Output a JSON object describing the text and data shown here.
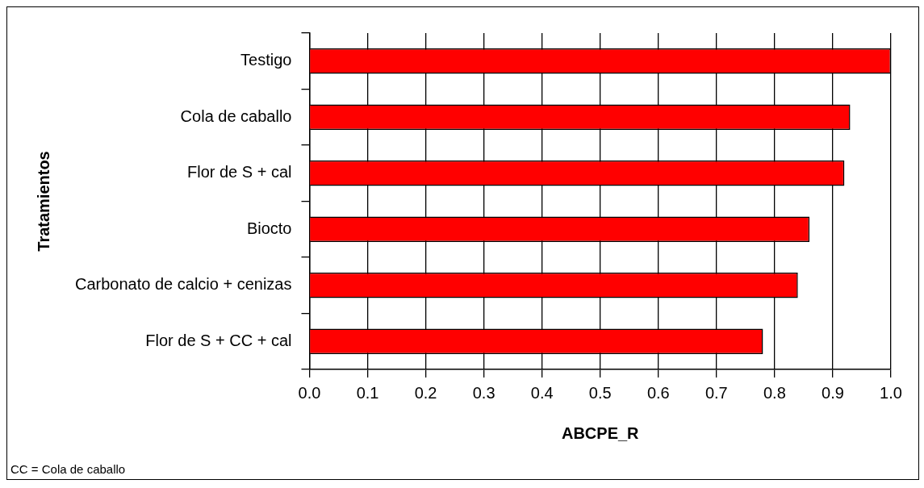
{
  "chart_data": {
    "type": "bar",
    "orientation": "horizontal",
    "xlabel": "ABCPE_R",
    "ylabel": "Tratamientos",
    "categories": [
      "Testigo",
      "Cola de caballo",
      "Flor de S + cal",
      "Biocto",
      "Carbonato de calcio + cenizas",
      "Flor de S + CC + cal"
    ],
    "values": [
      1.0,
      0.93,
      0.92,
      0.86,
      0.84,
      0.78
    ],
    "color": "#ff0000",
    "xlim": [
      0,
      1
    ],
    "xticks": [
      {
        "value": 0,
        "label": "0.0"
      },
      {
        "value": 0.1,
        "label": "0.1"
      },
      {
        "value": 0.2,
        "label": "0.2"
      },
      {
        "value": 0.3,
        "label": "0.3"
      },
      {
        "value": 0.4,
        "label": "0.4"
      },
      {
        "value": 0.5,
        "label": "0.5"
      },
      {
        "value": 0.6,
        "label": "0.6"
      },
      {
        "value": 0.7,
        "label": "0.7"
      },
      {
        "value": 0.8,
        "label": "0.8"
      },
      {
        "value": 0.9,
        "label": "0.9"
      },
      {
        "value": 1,
        "label": "1.0"
      }
    ],
    "grid": "x",
    "legend": false,
    "annotations": [
      "CC = Cola de caballo"
    ]
  }
}
